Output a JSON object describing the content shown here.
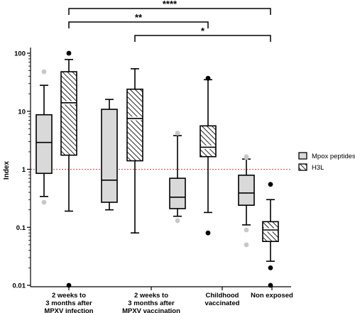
{
  "chart_data": {
    "type": "box",
    "title": "",
    "xlabel": "",
    "ylabel": "Index",
    "yscale": "log",
    "ylim": [
      0.01,
      150
    ],
    "y_ticks": [
      {
        "value": 0.01,
        "label": "0.01"
      },
      {
        "value": 0.1,
        "label": "0.1"
      },
      {
        "value": 1,
        "label": "1"
      },
      {
        "value": 10,
        "label": "10"
      },
      {
        "value": 100,
        "label": "100"
      }
    ],
    "reference_line": {
      "value": 1,
      "color": "#e8434b"
    },
    "categories": [
      [
        "2 weeks to",
        "3 months after",
        "MPXV infection"
      ],
      [
        "2 weeks to",
        "3 months after",
        "MPXV vaccination"
      ],
      [
        "Childhood",
        "vaccinated"
      ],
      [
        "Non exposed"
      ]
    ],
    "series": [
      {
        "name": "Mpox peptides",
        "fill": "#d9d9d9",
        "hatched": false,
        "outlier_color": "#c8c8c8",
        "boxes": [
          {
            "whisker_low": 0.34,
            "q1": 0.85,
            "median": 2.9,
            "q3": 8.7,
            "whisker_high": 28,
            "outliers": [
              48,
              0.27
            ]
          },
          {
            "whisker_low": 0.2,
            "q1": 0.27,
            "median": 0.65,
            "q3": 10.8,
            "whisker_high": 16,
            "outliers": []
          },
          {
            "whisker_low": 0.155,
            "q1": 0.21,
            "median": 0.33,
            "q3": 0.7,
            "whisker_high": 3.8,
            "outliers": [
              4.2,
              0.13
            ]
          },
          {
            "whisker_low": 0.11,
            "q1": 0.24,
            "median": 0.39,
            "q3": 0.79,
            "whisker_high": 1.5,
            "outliers": [
              1.65,
              1.6,
              0.09,
              0.05
            ]
          }
        ]
      },
      {
        "name": "H3L",
        "fill": "#4a4a4a",
        "hatched": true,
        "outlier_color": "#000000",
        "boxes": [
          {
            "whisker_low": 0.19,
            "q1": 1.75,
            "median": 14,
            "q3": 48,
            "whisker_high": 78,
            "outliers": [
              100,
              0.01
            ]
          },
          {
            "whisker_low": 0.08,
            "q1": 1.4,
            "median": 7.5,
            "q3": 24,
            "whisker_high": 54,
            "outliers": []
          },
          {
            "whisker_low": 0.18,
            "q1": 1.65,
            "median": 2.4,
            "q3": 5.6,
            "whisker_high": 35,
            "outliers": [
              37,
              0.08
            ]
          },
          {
            "whisker_low": 0.026,
            "q1": 0.057,
            "median": 0.09,
            "q3": 0.125,
            "whisker_high": 0.3,
            "outliers": [
              0.55,
              0.02,
              0.01
            ]
          }
        ]
      }
    ],
    "significance": [
      {
        "label": "****",
        "from_category": 0,
        "to_category": 3,
        "from_series": 1,
        "to_series": 1
      },
      {
        "label": "**",
        "from_category": 0,
        "to_category": 2,
        "from_series": 1,
        "to_series": 1
      },
      {
        "label": "*",
        "from_category": 1,
        "to_category": 3,
        "from_series": 1,
        "to_series": 1
      }
    ],
    "legend": {
      "position": "right"
    }
  }
}
